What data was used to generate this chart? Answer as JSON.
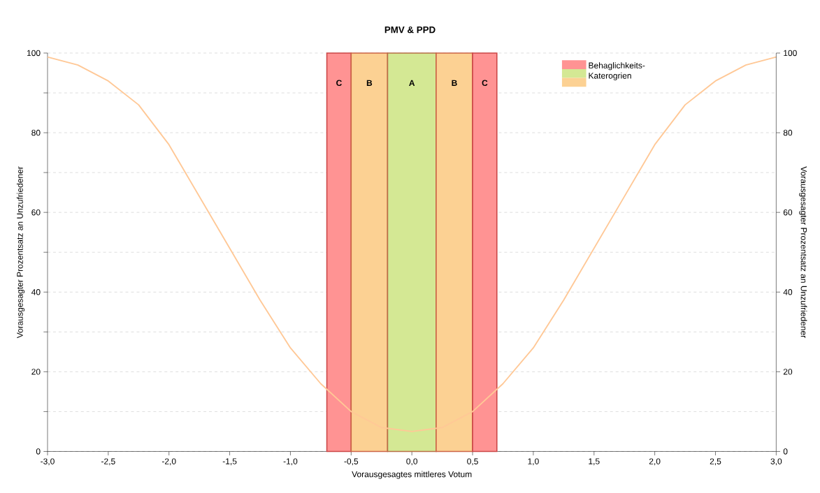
{
  "chart_data": {
    "type": "line",
    "title": "PMV & PPD",
    "xlabel": "Vorausgesagtes mittleres Votum",
    "ylabel": "Vorausgesagter Prozentsatz an Unzufriedener",
    "y2label": "Vorausgesagter Prozentsatz an Unzufriedener",
    "legend_title": "Behaglichkeits- Katerogrien",
    "legend": "top right",
    "grid": "y",
    "marker": "none",
    "line_style": "solid",
    "x": [
      -3,
      -2.75,
      -2.5,
      -2.25,
      -2,
      -1.75,
      -1.5,
      -1.25,
      -1,
      -0.75,
      -0.5,
      -0.25,
      0,
      0.25,
      0.5,
      0.75,
      1,
      1.25,
      1.5,
      1.75,
      2,
      2.25,
      2.5,
      2.75,
      3
    ],
    "series": [
      {
        "color": "#ffc896",
        "values": [
          99,
          97,
          93,
          87,
          77,
          64,
          51,
          38,
          26,
          17,
          10,
          6,
          5,
          6,
          10,
          17,
          26,
          38,
          51,
          64,
          77,
          87,
          93,
          97,
          99
        ]
      }
    ],
    "xlim": [
      -3,
      3
    ],
    "xticks": [
      {
        "value": -3,
        "label": "-3,0"
      },
      {
        "value": -2.5,
        "label": "-2,5"
      },
      {
        "value": -2,
        "label": "-2,0"
      },
      {
        "value": -1.5,
        "label": "-1,5"
      },
      {
        "value": -1,
        "label": "-1,0"
      },
      {
        "value": -0.5,
        "label": "-0,5"
      },
      {
        "value": 0,
        "label": "0,0"
      },
      {
        "value": 0.5,
        "label": "0,5"
      },
      {
        "value": 1,
        "label": "1,0"
      },
      {
        "value": 1.5,
        "label": "1,5"
      },
      {
        "value": 2,
        "label": "2,0"
      },
      {
        "value": 2.5,
        "label": "2,5"
      },
      {
        "value": 3,
        "label": "3,0"
      }
    ],
    "ylim": [
      0,
      100
    ],
    "yticks": [
      0,
      {
        "value": 10,
        "label": null
      },
      20,
      {
        "value": 30,
        "label": null
      },
      40,
      {
        "value": 50,
        "label": null
      },
      60,
      {
        "value": 70,
        "label": null
      },
      80,
      {
        "value": 90,
        "label": null
      },
      100
    ],
    "y2lim": [
      0,
      100
    ],
    "y2ticks": [
      0,
      20,
      40,
      60,
      80,
      100
    ],
    "bands": [
      {
        "axis": "x",
        "from": -0.7,
        "to": -0.5,
        "label": "C",
        "color": "#ff9393"
      },
      {
        "axis": "x",
        "from": -0.5,
        "to": -0.2,
        "label": "B",
        "color": "#fcd193"
      },
      {
        "axis": "x",
        "from": -0.2,
        "to": 0.2,
        "label": "A",
        "color": "#d4e894"
      },
      {
        "axis": "x",
        "from": 0.2,
        "to": 0.5,
        "label": "B",
        "color": "#fcd193"
      },
      {
        "axis": "x",
        "from": 0.5,
        "to": 0.7,
        "label": "C",
        "color": "#ff9393"
      }
    ]
  }
}
